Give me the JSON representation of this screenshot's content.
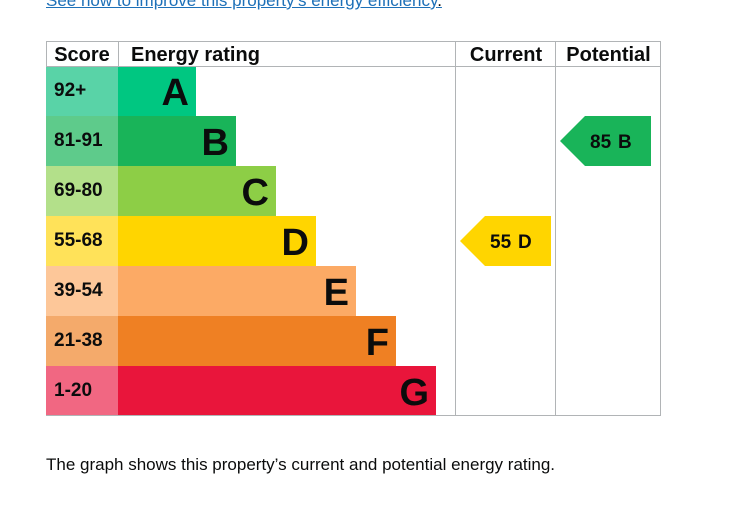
{
  "top_link": {
    "text": "See how to improve this property’s energy efficiency",
    "trailing": "."
  },
  "caption": "The graph shows this property’s current and potential energy rating.",
  "chart_data": {
    "type": "bar",
    "headers": {
      "score": "Score",
      "rating": "Energy rating",
      "current": "Current",
      "potential": "Potential"
    },
    "bands": [
      {
        "range": "92+",
        "letter": "A",
        "color": "#00c781",
        "score_color": "#59d3a7"
      },
      {
        "range": "81-91",
        "letter": "B",
        "color": "#19b459",
        "score_color": "#5ecb8b"
      },
      {
        "range": "69-80",
        "letter": "C",
        "color": "#8dce46",
        "score_color": "#b3e08a"
      },
      {
        "range": "55-68",
        "letter": "D",
        "color": "#ffd500",
        "score_color": "#ffe259"
      },
      {
        "range": "39-54",
        "letter": "E",
        "color": "#fcaa65",
        "score_color": "#fdc799"
      },
      {
        "range": "21-38",
        "letter": "F",
        "color": "#ef8023",
        "score_color": "#f4aa6b"
      },
      {
        "range": "1-20",
        "letter": "G",
        "color": "#e9153b",
        "score_color": "#f16782"
      }
    ],
    "current": {
      "value": 55,
      "letter": "D",
      "band_index": 3,
      "color": "#ffd500"
    },
    "potential": {
      "value": 85,
      "letter": "B",
      "band_index": 1,
      "color": "#19b459"
    }
  }
}
